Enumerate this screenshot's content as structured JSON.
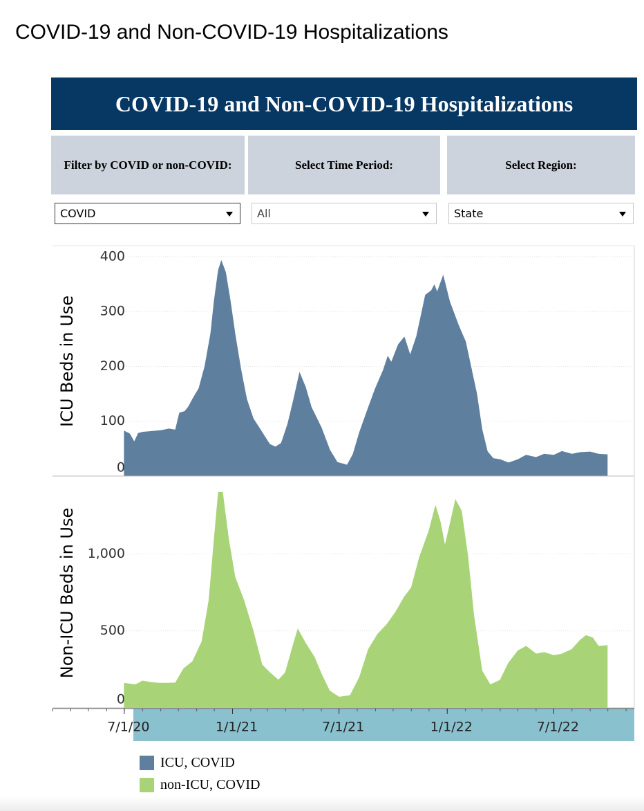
{
  "page": {
    "title": "COVID-19 and Non-COVID-19 Hospitalizations"
  },
  "dashboard": {
    "banner_title": "COVID-19 and Non-COVID-19 Hospitalizations",
    "filters": [
      {
        "label": "Filter by COVID or non-COVID:",
        "value": "COVID"
      },
      {
        "label": "Select Time Period:",
        "value": "All"
      },
      {
        "label": "Select Region:",
        "value": "State"
      }
    ]
  },
  "colors": {
    "banner": "#073763",
    "filter_header": "#ccd3dd",
    "icu": "#5f7f9f",
    "non_icu": "#a8d377",
    "axis_band": "#8ac1cf"
  },
  "chart_data": {
    "type": "area",
    "x_axis": {
      "tick_labels": [
        "7/1/20",
        "1/1/21",
        "7/1/21",
        "1/1/22",
        "7/1/22"
      ],
      "range": [
        "2020-03-01",
        "2022-11-15"
      ]
    },
    "panels": [
      {
        "ylabel": "ICU Beds in Use",
        "ylim": [
          0,
          410
        ],
        "yticks": [
          0,
          100,
          200,
          300,
          400
        ],
        "ytick_labels": [
          "0",
          "100",
          "200",
          "300",
          "400"
        ],
        "series": {
          "name": "ICU, COVID",
          "points": [
            [
              "2020-07-01",
              82
            ],
            [
              "2020-07-10",
              77
            ],
            [
              "2020-07-18",
              62
            ],
            [
              "2020-07-25",
              78
            ],
            [
              "2020-08-01",
              80
            ],
            [
              "2020-09-01",
              83
            ],
            [
              "2020-09-15",
              86
            ],
            [
              "2020-09-26",
              84
            ],
            [
              "2020-10-03",
              115
            ],
            [
              "2020-10-12",
              118
            ],
            [
              "2020-10-18",
              126
            ],
            [
              "2020-10-25",
              140
            ],
            [
              "2020-11-05",
              160
            ],
            [
              "2020-11-15",
              200
            ],
            [
              "2020-11-25",
              260
            ],
            [
              "2020-12-01",
              320
            ],
            [
              "2020-12-08",
              375
            ],
            [
              "2020-12-13",
              392
            ],
            [
              "2020-12-20",
              372
            ],
            [
              "2020-12-28",
              320
            ],
            [
              "2021-01-05",
              260
            ],
            [
              "2021-01-15",
              195
            ],
            [
              "2021-01-25",
              140
            ],
            [
              "2021-02-05",
              105
            ],
            [
              "2021-02-20",
              80
            ],
            [
              "2021-03-05",
              58
            ],
            [
              "2021-03-15",
              53
            ],
            [
              "2021-03-25",
              60
            ],
            [
              "2021-04-05",
              95
            ],
            [
              "2021-04-15",
              140
            ],
            [
              "2021-04-25",
              188
            ],
            [
              "2021-05-05",
              162
            ],
            [
              "2021-05-15",
              125
            ],
            [
              "2021-06-01",
              88
            ],
            [
              "2021-06-15",
              48
            ],
            [
              "2021-06-28",
              25
            ],
            [
              "2021-07-15",
              20
            ],
            [
              "2021-07-25",
              40
            ],
            [
              "2021-08-05",
              80
            ],
            [
              "2021-08-20",
              125
            ],
            [
              "2021-09-01",
              160
            ],
            [
              "2021-09-15",
              195
            ],
            [
              "2021-09-22",
              218
            ],
            [
              "2021-09-28",
              207
            ],
            [
              "2021-10-10",
              240
            ],
            [
              "2021-10-20",
              253
            ],
            [
              "2021-10-30",
              220
            ],
            [
              "2021-11-10",
              255
            ],
            [
              "2021-11-25",
              330
            ],
            [
              "2021-12-05",
              338
            ],
            [
              "2021-12-10",
              348
            ],
            [
              "2021-12-15",
              335
            ],
            [
              "2021-12-25",
              365
            ],
            [
              "2022-01-05",
              318
            ],
            [
              "2022-01-20",
              275
            ],
            [
              "2022-02-01",
              245
            ],
            [
              "2022-02-10",
              200
            ],
            [
              "2022-02-20",
              150
            ],
            [
              "2022-03-01",
              85
            ],
            [
              "2022-03-10",
              45
            ],
            [
              "2022-03-20",
              32
            ],
            [
              "2022-04-01",
              30
            ],
            [
              "2022-04-15",
              24
            ],
            [
              "2022-05-01",
              30
            ],
            [
              "2022-05-15",
              38
            ],
            [
              "2022-06-01",
              34
            ],
            [
              "2022-06-15",
              40
            ],
            [
              "2022-07-01",
              38
            ],
            [
              "2022-07-15",
              45
            ],
            [
              "2022-08-01",
              40
            ],
            [
              "2022-08-15",
              43
            ],
            [
              "2022-09-01",
              44
            ],
            [
              "2022-09-15",
              40
            ],
            [
              "2022-09-30",
              39
            ]
          ]
        }
      },
      {
        "ylabel": "Non-ICU Beds in Use",
        "ylim": [
          0,
          1460
        ],
        "yticks": [
          0,
          500,
          1000
        ],
        "ytick_labels": [
          "0",
          "500",
          "1,000"
        ],
        "series": {
          "name": "non-ICU, COVID",
          "points": [
            [
              "2020-07-01",
              160
            ],
            [
              "2020-07-20",
              150
            ],
            [
              "2020-08-01",
              175
            ],
            [
              "2020-08-15",
              165
            ],
            [
              "2020-09-01",
              160
            ],
            [
              "2020-09-26",
              162
            ],
            [
              "2020-10-10",
              255
            ],
            [
              "2020-10-25",
              300
            ],
            [
              "2020-11-10",
              430
            ],
            [
              "2020-11-22",
              700
            ],
            [
              "2020-12-01",
              1100
            ],
            [
              "2020-12-08",
              1400
            ],
            [
              "2020-12-15",
              1400
            ],
            [
              "2020-12-25",
              1100
            ],
            [
              "2021-01-05",
              850
            ],
            [
              "2021-01-20",
              700
            ],
            [
              "2021-02-05",
              500
            ],
            [
              "2021-02-20",
              280
            ],
            [
              "2021-03-05",
              230
            ],
            [
              "2021-03-20",
              180
            ],
            [
              "2021-04-01",
              230
            ],
            [
              "2021-04-12",
              380
            ],
            [
              "2021-04-22",
              510
            ],
            [
              "2021-05-05",
              420
            ],
            [
              "2021-05-20",
              330
            ],
            [
              "2021-06-01",
              220
            ],
            [
              "2021-06-15",
              110
            ],
            [
              "2021-07-01",
              70
            ],
            [
              "2021-07-20",
              80
            ],
            [
              "2021-08-05",
              200
            ],
            [
              "2021-08-20",
              380
            ],
            [
              "2021-09-05",
              480
            ],
            [
              "2021-09-20",
              540
            ],
            [
              "2021-10-05",
              620
            ],
            [
              "2021-10-20",
              720
            ],
            [
              "2021-11-01",
              780
            ],
            [
              "2021-11-15",
              980
            ],
            [
              "2021-12-01",
              1150
            ],
            [
              "2021-12-12",
              1310
            ],
            [
              "2021-12-20",
              1210
            ],
            [
              "2021-12-28",
              1050
            ],
            [
              "2022-01-05",
              1180
            ],
            [
              "2022-01-15",
              1350
            ],
            [
              "2022-01-25",
              1280
            ],
            [
              "2022-02-05",
              980
            ],
            [
              "2022-02-15",
              600
            ],
            [
              "2022-03-01",
              240
            ],
            [
              "2022-03-15",
              150
            ],
            [
              "2022-04-01",
              180
            ],
            [
              "2022-04-15",
              290
            ],
            [
              "2022-05-01",
              370
            ],
            [
              "2022-05-15",
              400
            ],
            [
              "2022-06-01",
              350
            ],
            [
              "2022-06-15",
              360
            ],
            [
              "2022-07-01",
              340
            ],
            [
              "2022-07-15",
              350
            ],
            [
              "2022-08-01",
              380
            ],
            [
              "2022-08-15",
              440
            ],
            [
              "2022-08-25",
              470
            ],
            [
              "2022-09-05",
              455
            ],
            [
              "2022-09-15",
              400
            ],
            [
              "2022-09-30",
              405
            ]
          ]
        }
      }
    ],
    "legend": {
      "placement": "bottom-left",
      "entries": [
        "ICU, COVID",
        "non-ICU, COVID"
      ]
    },
    "grid": true
  }
}
